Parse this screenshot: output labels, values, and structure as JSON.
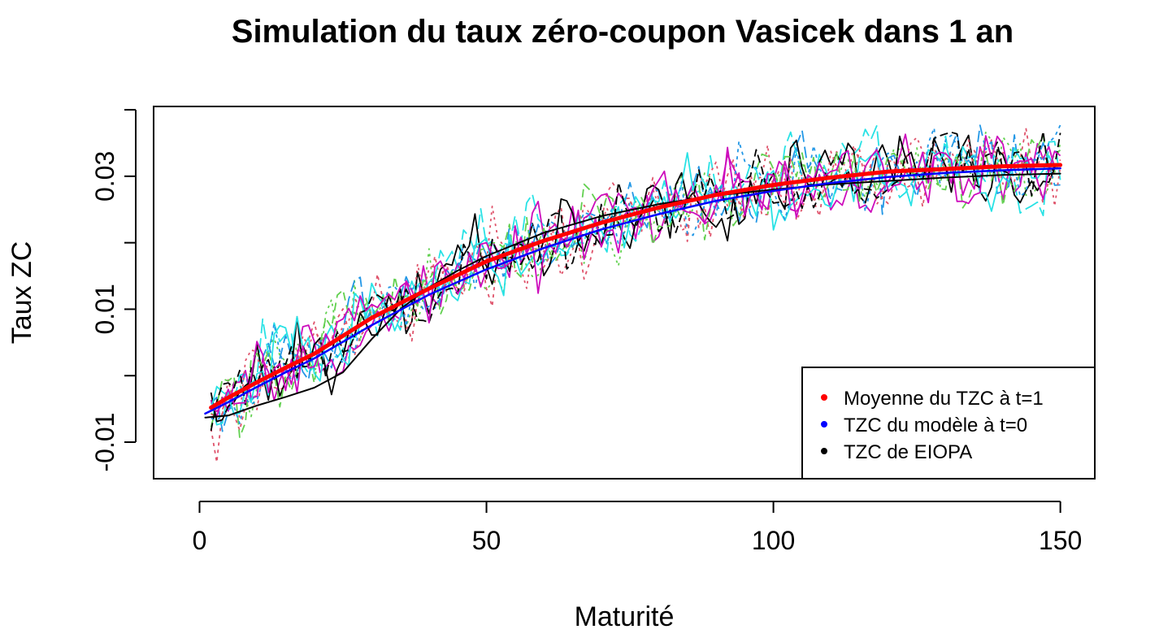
{
  "chart_data": {
    "type": "line",
    "title": "Simulation du taux zéro-coupon Vasicek dans 1 an",
    "xlabel": "Maturité",
    "ylabel": "Taux ZC",
    "xlim": [
      -8,
      156
    ],
    "ylim": [
      -0.0155,
      0.0405
    ],
    "x_ticks": [
      0,
      50,
      100,
      150
    ],
    "x_tick_labels": [
      "0",
      "50",
      "100",
      "150"
    ],
    "y_ticks": [
      -0.01,
      0.0,
      0.01,
      0.02,
      0.03,
      0.04
    ],
    "y_tick_labels": [
      "-0.01",
      "",
      "0.01",
      "",
      "0.03",
      ""
    ],
    "grid": false,
    "legend": {
      "position": "bottom-right",
      "entries": [
        {
          "label": "Moyenne du TZC à t=1",
          "color": "#ff0000"
        },
        {
          "label": "TZC du modèle à t=0",
          "color": "#0000ff"
        },
        {
          "label": "TZC de EIOPA",
          "color": "#000000"
        }
      ]
    },
    "x_range": [
      1,
      150
    ],
    "curves": [
      {
        "name": "Moyenne du TZC à t=1",
        "color": "#ff0000",
        "width": 5,
        "x": [
          2,
          5,
          10,
          15,
          20,
          30,
          40,
          50,
          60,
          70,
          80,
          90,
          100,
          110,
          120,
          130,
          140,
          150
        ],
        "y": [
          -0.0048,
          -0.0033,
          -0.001,
          0.0012,
          0.0033,
          0.0087,
          0.0131,
          0.0172,
          0.0203,
          0.023,
          0.0253,
          0.0272,
          0.0287,
          0.0298,
          0.0307,
          0.0311,
          0.0315,
          0.0317
        ]
      },
      {
        "name": "TZC du modèle à t=0",
        "color": "#0000ff",
        "width": 2.5,
        "x": [
          1,
          5,
          10,
          15,
          20,
          30,
          40,
          50,
          60,
          70,
          80,
          90,
          100,
          110,
          120,
          130,
          140,
          150
        ],
        "y": [
          -0.0057,
          -0.004,
          -0.0017,
          0.0005,
          0.0026,
          0.0076,
          0.0122,
          0.016,
          0.0192,
          0.022,
          0.0243,
          0.0263,
          0.0278,
          0.029,
          0.0299,
          0.0305,
          0.0309,
          0.0312
        ]
      },
      {
        "name": "TZC de EIOPA",
        "color": "#000000",
        "width": 2,
        "x": [
          1,
          5,
          10,
          15,
          20,
          25,
          30,
          35,
          40,
          45,
          50,
          60,
          70,
          80,
          90,
          100,
          110,
          120,
          130,
          140,
          150
        ],
        "y": [
          -0.0063,
          -0.006,
          -0.0045,
          -0.0032,
          -0.0018,
          0.0005,
          0.0055,
          0.01,
          0.0133,
          0.0158,
          0.018,
          0.0215,
          0.024,
          0.0258,
          0.0271,
          0.028,
          0.0288,
          0.0293,
          0.0298,
          0.0302,
          0.0304
        ]
      }
    ],
    "simulations": [
      {
        "color": "#df536b",
        "dash": "4,5"
      },
      {
        "color": "#61d04f",
        "dash": "3,5"
      },
      {
        "color": "#2297e6",
        "dash": "14,6"
      },
      {
        "color": "#28e2e5",
        "dash": "18,6"
      },
      {
        "color": "#cd0bbc",
        "dash": ""
      },
      {
        "color": "#000000",
        "dash": ""
      },
      {
        "color": "#df536b",
        "dash": "3,5"
      },
      {
        "color": "#61d04f",
        "dash": "10,6"
      },
      {
        "color": "#28e2e5",
        "dash": ""
      },
      {
        "color": "#2297e6",
        "dash": "4,5"
      },
      {
        "color": "#000000",
        "dash": "10,5"
      },
      {
        "color": "#cd0bbc",
        "dash": ""
      }
    ]
  }
}
